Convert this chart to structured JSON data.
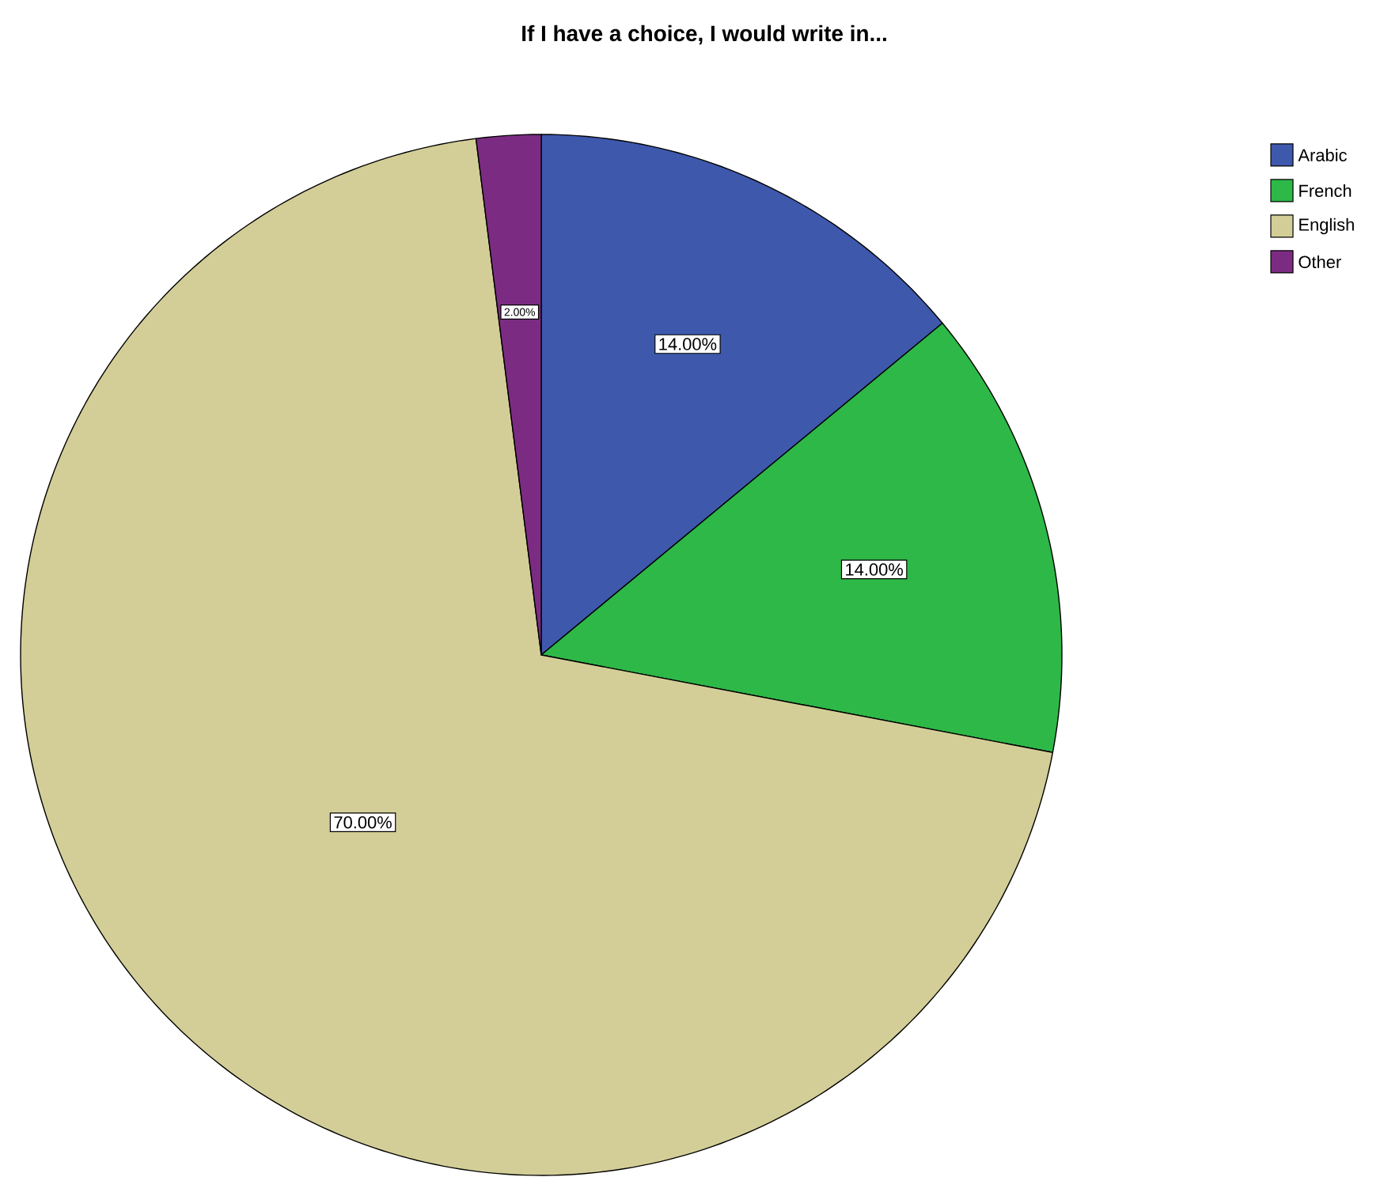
{
  "chart_data": {
    "type": "pie",
    "title": "If I have a choice, I would write in...",
    "categories": [
      "Arabic",
      "French",
      "English",
      "Other"
    ],
    "values": [
      14,
      14,
      70,
      2
    ],
    "value_labels": [
      "14.00%",
      "14.00%",
      "70.00%",
      "2.00%"
    ],
    "colors": [
      "#3e58ac",
      "#2eb848",
      "#d3ce97",
      "#7b2c82"
    ],
    "legend": "top right"
  }
}
